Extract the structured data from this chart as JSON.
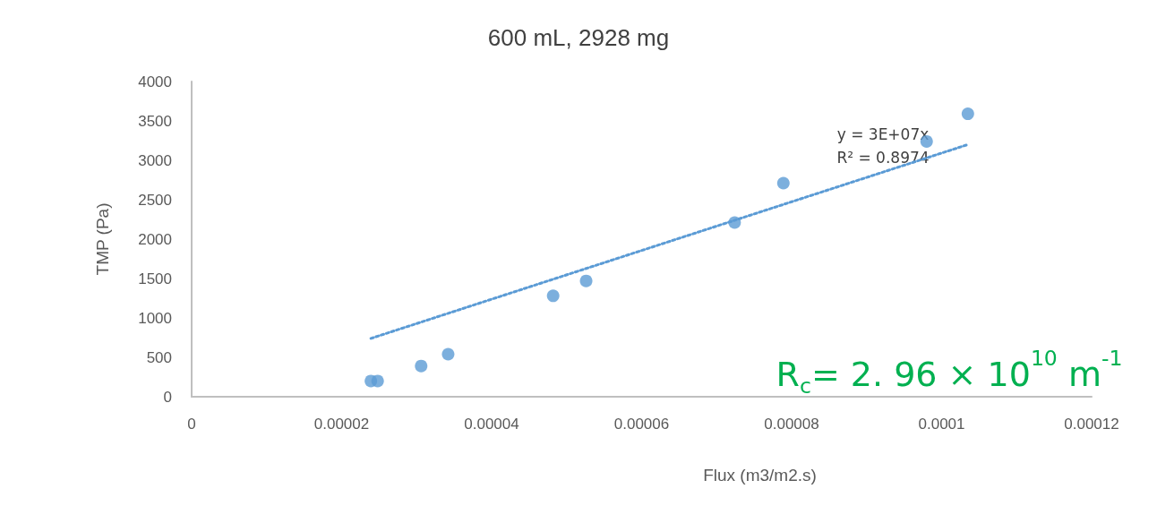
{
  "chart_data": {
    "type": "scatter",
    "title": "600 mL, 2928 mg",
    "xlabel": "Flux (m3/m2.s)",
    "ylabel": "TMP (Pa)",
    "xlim": [
      0,
      0.00012
    ],
    "xticks": [
      0,
      {
        "value": 2e-05,
        "label": "0.00002"
      },
      {
        "value": 4e-05,
        "label": "0.00004"
      },
      {
        "value": 6e-05,
        "label": "0.00006"
      },
      {
        "value": 8e-05,
        "label": "0.00008"
      },
      0.0001,
      0.00012
    ],
    "ylim": [
      0,
      4000
    ],
    "yticks": [
      0,
      500,
      1000,
      1500,
      2000,
      2500,
      3000,
      3500,
      4000
    ],
    "grid": false,
    "series": [
      {
        "color": "#5b9bd5",
        "marker": "circle",
        "x": [
          2.39e-05,
          2.48e-05,
          3.06e-05,
          3.42e-05,
          4.82e-05,
          5.26e-05,
          7.24e-05,
          7.89e-05,
          9.8e-05,
          0.0001035
        ],
        "values": [
          200,
          200,
          390,
          540,
          1280,
          1470,
          2210,
          2710,
          3240,
          3590
        ]
      },
      {
        "type": "line",
        "color": "#5b9bd5",
        "marker": "none",
        "line_style": "dotted",
        "x": [
          2.39e-05,
          0.0001035
        ],
        "values": [
          740,
          3200
        ]
      }
    ],
    "annotations": [
      "y = 3E+07x",
      "R² = 0.8974",
      "R$_{c}$= 2. 96 × 10$^{10}$ m$^{-1}$"
    ]
  }
}
